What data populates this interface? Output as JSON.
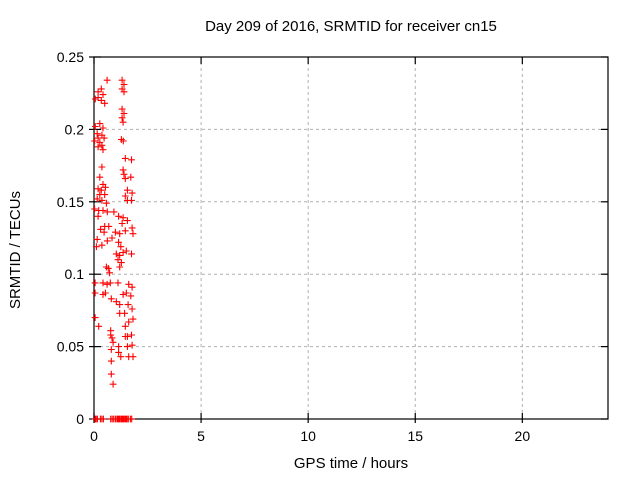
{
  "window": {
    "background": "#ffffff"
  },
  "chart_data": {
    "type": "scatter",
    "title": "Day 209 of 2016, SRMTID for receiver cn15",
    "xlabel": "GPS time / hours",
    "ylabel": "SRMTID / TECUs",
    "xlim": [
      0,
      24
    ],
    "ylim": [
      0,
      0.25
    ],
    "xticks": [
      0,
      5,
      10,
      15,
      20
    ],
    "xtick_labels": [
      "0",
      "5",
      "10",
      "15",
      "20"
    ],
    "yticks": [
      0,
      0.05,
      0.1,
      0.15,
      0.2,
      0.25
    ],
    "ytick_labels": [
      "0",
      "0.05",
      "0.1",
      "0.15",
      "0.2",
      "0.25"
    ],
    "grid": true,
    "legend": "none",
    "marker": "plus",
    "marker_color": "#ff0000",
    "grid_color": "#b0b0b0",
    "frame_color": "#000000",
    "series": [
      {
        "name": "SRMTID",
        "points": [
          [
            0.61,
            0.234
          ],
          [
            1.31,
            0.234
          ],
          [
            1.4,
            0.231
          ],
          [
            0.34,
            0.228
          ],
          [
            1.31,
            0.228
          ],
          [
            0.19,
            0.226
          ],
          [
            1.4,
            0.226
          ],
          [
            0.42,
            0.224
          ],
          [
            0.19,
            0.222
          ],
          [
            0.06,
            0.221
          ],
          [
            0.34,
            0.22
          ],
          [
            0.5,
            0.218
          ],
          [
            1.31,
            0.214
          ],
          [
            1.4,
            0.211
          ],
          [
            1.31,
            0.208
          ],
          [
            1.36,
            0.205
          ],
          [
            0.27,
            0.204
          ],
          [
            0.06,
            0.202
          ],
          [
            0.42,
            0.201
          ],
          [
            0.15,
            0.197
          ],
          [
            0.37,
            0.196
          ],
          [
            0.19,
            0.194
          ],
          [
            0.47,
            0.194
          ],
          [
            1.28,
            0.193
          ],
          [
            0.03,
            0.192
          ],
          [
            1.37,
            0.192
          ],
          [
            0.27,
            0.191
          ],
          [
            0.37,
            0.189
          ],
          [
            0.19,
            0.188
          ],
          [
            0.42,
            0.186
          ],
          [
            1.46,
            0.18
          ],
          [
            1.75,
            0.179
          ],
          [
            0.37,
            0.174
          ],
          [
            1.36,
            0.172
          ],
          [
            1.4,
            0.169
          ],
          [
            0.27,
            0.167
          ],
          [
            1.72,
            0.167
          ],
          [
            1.46,
            0.166
          ],
          [
            0.42,
            0.162
          ],
          [
            0.53,
            0.16
          ],
          [
            0.19,
            0.159
          ],
          [
            0.34,
            0.158
          ],
          [
            1.56,
            0.158
          ],
          [
            1.78,
            0.156
          ],
          [
            0.27,
            0.155
          ],
          [
            0.5,
            0.155
          ],
          [
            1.46,
            0.154
          ],
          [
            0.15,
            0.152
          ],
          [
            1.56,
            0.151
          ],
          [
            1.75,
            0.151
          ],
          [
            0.37,
            0.151
          ],
          [
            0.58,
            0.149
          ],
          [
            0.03,
            0.145
          ],
          [
            0.22,
            0.144
          ],
          [
            0.42,
            0.144
          ],
          [
            0.62,
            0.143
          ],
          [
            0.93,
            0.143
          ],
          [
            0.19,
            0.14
          ],
          [
            1.15,
            0.14
          ],
          [
            1.36,
            0.139
          ],
          [
            1.56,
            0.137
          ],
          [
            1.31,
            0.135
          ],
          [
            0.69,
            0.133
          ],
          [
            0.5,
            0.133
          ],
          [
            0.31,
            0.131
          ],
          [
            1.78,
            0.132
          ],
          [
            0.47,
            0.129
          ],
          [
            1.0,
            0.129
          ],
          [
            1.2,
            0.128
          ],
          [
            1.46,
            0.13
          ],
          [
            1.82,
            0.128
          ],
          [
            0.84,
            0.125
          ],
          [
            0.15,
            0.124
          ],
          [
            0.62,
            0.123
          ],
          [
            1.15,
            0.122
          ],
          [
            0.11,
            0.119
          ],
          [
            0.37,
            0.12
          ],
          [
            1.25,
            0.119
          ],
          [
            1.51,
            0.116
          ],
          [
            1.04,
            0.114
          ],
          [
            1.36,
            0.115
          ],
          [
            1.2,
            0.113
          ],
          [
            1.75,
            0.114
          ],
          [
            1.12,
            0.11
          ],
          [
            1.28,
            0.108
          ],
          [
            0.58,
            0.105
          ],
          [
            1.2,
            0.105
          ],
          [
            0.67,
            0.104
          ],
          [
            0.73,
            0.101
          ],
          [
            0.05,
            0.094
          ],
          [
            0.42,
            0.094
          ],
          [
            0.61,
            0.093
          ],
          [
            0.76,
            0.094
          ],
          [
            1.12,
            0.094
          ],
          [
            1.62,
            0.093
          ],
          [
            1.78,
            0.091
          ],
          [
            0.05,
            0.087
          ],
          [
            0.53,
            0.087
          ],
          [
            0.42,
            0.086
          ],
          [
            1.36,
            0.086
          ],
          [
            1.51,
            0.087
          ],
          [
            1.72,
            0.085
          ],
          [
            0.81,
            0.083
          ],
          [
            1.04,
            0.081
          ],
          [
            1.2,
            0.079
          ],
          [
            1.59,
            0.079
          ],
          [
            1.78,
            0.076
          ],
          [
            1.2,
            0.073
          ],
          [
            1.43,
            0.073
          ],
          [
            0.05,
            0.07
          ],
          [
            1.82,
            0.069
          ],
          [
            1.62,
            0.067
          ],
          [
            0.22,
            0.064
          ],
          [
            1.46,
            0.064
          ],
          [
            0.78,
            0.061
          ],
          [
            0.78,
            0.058
          ],
          [
            1.75,
            0.058
          ],
          [
            0.84,
            0.056
          ],
          [
            1.46,
            0.057
          ],
          [
            1.56,
            0.057
          ],
          [
            0.89,
            0.053
          ],
          [
            1.78,
            0.051
          ],
          [
            1.15,
            0.05
          ],
          [
            1.56,
            0.05
          ],
          [
            0.81,
            0.048
          ],
          [
            1.15,
            0.046
          ],
          [
            1.25,
            0.043
          ],
          [
            1.62,
            0.043
          ],
          [
            1.82,
            0.043
          ],
          [
            0.81,
            0.04
          ],
          [
            0.81,
            0.031
          ],
          [
            0.89,
            0.024
          ],
          [
            0.05,
            0
          ],
          [
            0.1,
            0
          ],
          [
            0.16,
            0
          ],
          [
            0.3,
            0
          ],
          [
            0.37,
            0
          ],
          [
            0.44,
            0
          ],
          [
            0.78,
            0
          ],
          [
            0.85,
            0
          ],
          [
            0.92,
            0
          ],
          [
            1.0,
            0
          ],
          [
            1.07,
            0
          ],
          [
            1.12,
            0
          ],
          [
            1.17,
            0
          ],
          [
            1.22,
            0
          ],
          [
            1.28,
            0
          ],
          [
            1.33,
            0
          ],
          [
            1.38,
            0
          ],
          [
            1.44,
            0
          ],
          [
            1.49,
            0
          ],
          [
            1.54,
            0
          ],
          [
            1.6,
            0
          ],
          [
            1.7,
            0
          ],
          [
            1.76,
            0
          ]
        ]
      }
    ]
  }
}
